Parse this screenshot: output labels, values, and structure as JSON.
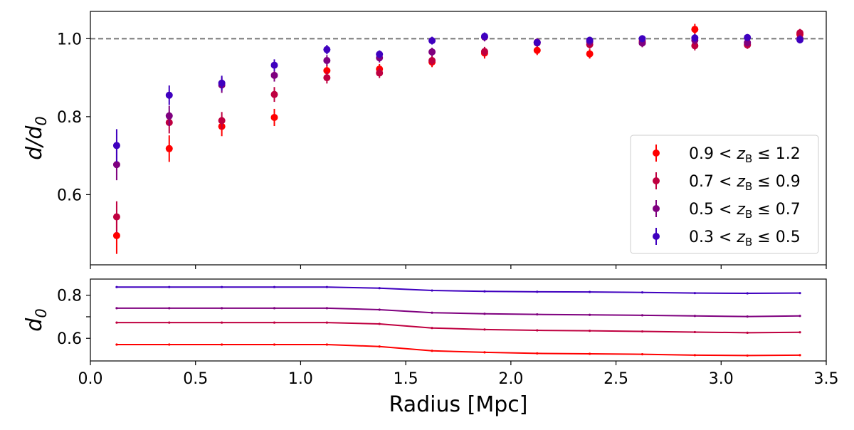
{
  "chart_data": [
    {
      "type": "scatter",
      "ylabel": "d/d0",
      "ylabel_base": "d/d",
      "ylabel_sub": "0",
      "ylim": [
        0.42,
        1.07
      ],
      "xlim": [
        0.0,
        3.5
      ],
      "yticks": [
        0.6,
        0.8,
        1.0
      ],
      "ytick_labels": [
        "0.6",
        "0.8",
        "1.0"
      ],
      "reference_line": 1.0,
      "grid": false,
      "legend_position": "lower-right",
      "x": [
        0.125,
        0.375,
        0.625,
        0.875,
        1.125,
        1.375,
        1.625,
        1.875,
        2.125,
        2.375,
        2.625,
        2.875,
        3.125,
        3.375
      ],
      "series": [
        {
          "name": "0.9 < zB ≤ 1.2",
          "legend_pre": "0.9 < ",
          "legend_var": "z",
          "legend_sub": "B",
          "legend_post": " ≤ 1.2",
          "color": "#ff0000",
          "values": [
            0.495,
            0.718,
            0.775,
            0.798,
            0.918,
            0.922,
            0.94,
            0.963,
            0.97,
            0.961,
            0.994,
            1.024,
            0.986,
            1.011
          ],
          "errors": [
            0.047,
            0.034,
            0.025,
            0.022,
            0.016,
            0.013,
            0.013,
            0.014,
            0.012,
            0.012,
            0.012,
            0.014,
            0.012,
            0.012
          ]
        },
        {
          "name": "0.7 < zB ≤ 0.9",
          "legend_pre": "0.7 < ",
          "legend_var": "z",
          "legend_sub": "B",
          "legend_post": " ≤ 0.9",
          "color": "#bf0040",
          "values": [
            0.543,
            0.785,
            0.79,
            0.857,
            0.9,
            0.912,
            0.944,
            0.967,
            0.989,
            0.985,
            0.989,
            0.982,
            0.984,
            1.015
          ],
          "errors": [
            0.04,
            0.028,
            0.022,
            0.019,
            0.015,
            0.013,
            0.012,
            0.012,
            0.011,
            0.011,
            0.011,
            0.012,
            0.01,
            0.01
          ]
        },
        {
          "name": "0.5 < zB ≤ 0.7",
          "legend_pre": "0.5 < ",
          "legend_var": "z",
          "legend_sub": "B",
          "legend_post": " ≤ 0.7",
          "color": "#7f007f",
          "values": [
            0.677,
            0.802,
            0.881,
            0.906,
            0.944,
            0.951,
            0.966,
            1.004,
            0.991,
            0.992,
            0.989,
            0.996,
            0.99,
            1.0
          ],
          "errors": [
            0.04,
            0.026,
            0.02,
            0.016,
            0.014,
            0.012,
            0.011,
            0.011,
            0.01,
            0.01,
            0.01,
            0.011,
            0.01,
            0.01
          ]
        },
        {
          "name": "0.3 < zB ≤ 0.5",
          "legend_pre": "0.3 < ",
          "legend_var": "z",
          "legend_sub": "B",
          "legend_post": " ≤ 0.5",
          "color": "#3f00bf",
          "values": [
            0.726,
            0.855,
            0.886,
            0.932,
            0.972,
            0.96,
            0.995,
            1.006,
            0.99,
            0.996,
            1.0,
            1.002,
            1.003,
            0.997
          ],
          "errors": [
            0.042,
            0.025,
            0.019,
            0.015,
            0.012,
            0.01,
            0.01,
            0.01,
            0.009,
            0.009,
            0.009,
            0.01,
            0.009,
            0.009
          ]
        }
      ]
    },
    {
      "type": "line",
      "ylabel": "d0",
      "ylabel_base": "d",
      "ylabel_sub": "0",
      "xlabel": "Radius [Mpc]",
      "xlim": [
        0.0,
        3.5
      ],
      "ylim": [
        0.495,
        0.875
      ],
      "yticks": [
        0.6,
        0.7,
        0.8
      ],
      "ytick_labels": [
        "0.6",
        "",
        "0.8"
      ],
      "xticks": [
        0.0,
        0.5,
        1.0,
        1.5,
        2.0,
        2.5,
        3.0,
        3.5
      ],
      "xtick_labels": [
        "0.0",
        "0.5",
        "1.0",
        "1.5",
        "2.0",
        "2.5",
        "3.0",
        "3.5"
      ],
      "grid": false,
      "x": [
        0.125,
        0.375,
        0.625,
        0.875,
        1.125,
        1.375,
        1.625,
        1.875,
        2.125,
        2.375,
        2.625,
        2.875,
        3.125,
        3.375
      ],
      "series": [
        {
          "color": "#ff0000",
          "values": [
            0.571,
            0.571,
            0.571,
            0.571,
            0.571,
            0.562,
            0.542,
            0.535,
            0.53,
            0.528,
            0.526,
            0.522,
            0.52,
            0.522
          ]
        },
        {
          "color": "#bf0040",
          "values": [
            0.673,
            0.673,
            0.673,
            0.673,
            0.673,
            0.667,
            0.648,
            0.641,
            0.637,
            0.635,
            0.632,
            0.629,
            0.626,
            0.628
          ]
        },
        {
          "color": "#7f007f",
          "values": [
            0.74,
            0.74,
            0.74,
            0.74,
            0.74,
            0.733,
            0.719,
            0.714,
            0.711,
            0.709,
            0.707,
            0.704,
            0.701,
            0.704
          ]
        },
        {
          "color": "#3f00bf",
          "values": [
            0.838,
            0.838,
            0.838,
            0.838,
            0.838,
            0.833,
            0.822,
            0.818,
            0.816,
            0.815,
            0.813,
            0.81,
            0.809,
            0.81
          ]
        }
      ]
    }
  ]
}
